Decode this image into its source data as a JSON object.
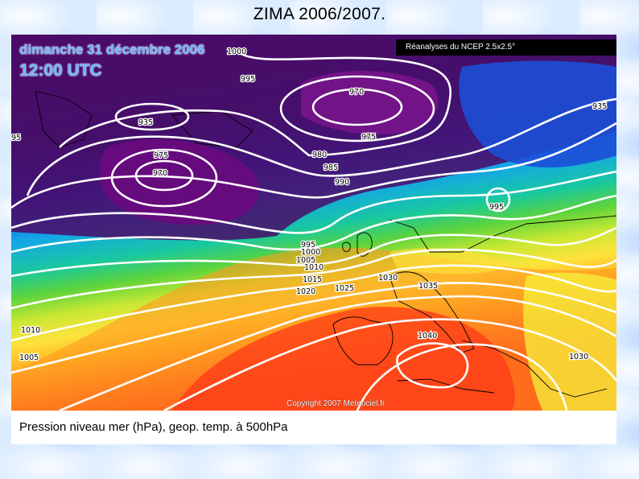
{
  "title": "ZIMA 2006/2007.",
  "map": {
    "date": "dimanche 31 décembre 2006",
    "time": "12:00 UTC",
    "source": "Réanalyses du NCEP 2.5x2.5°",
    "copyright": "Copyright 2007 Meteociel.fr",
    "caption": "Pression niveau mer (hPa), geop. temp. à 500hPa",
    "isobar_labels": [
      {
        "text": "1000"
      },
      {
        "text": "995"
      },
      {
        "text": "935"
      },
      {
        "text": "970"
      },
      {
        "text": "935"
      },
      {
        "text": "975"
      },
      {
        "text": "95"
      },
      {
        "text": "975"
      },
      {
        "text": "970"
      },
      {
        "text": "980"
      },
      {
        "text": "985"
      },
      {
        "text": "990"
      },
      {
        "text": "995"
      },
      {
        "text": "995"
      },
      {
        "text": "1000"
      },
      {
        "text": "1005"
      },
      {
        "text": "1010"
      },
      {
        "text": "1015"
      },
      {
        "text": "1020"
      },
      {
        "text": "1025"
      },
      {
        "text": "1030"
      },
      {
        "text": "1035"
      },
      {
        "text": "1040"
      },
      {
        "text": "1030"
      },
      {
        "text": "1010"
      },
      {
        "text": "1005"
      }
    ]
  }
}
